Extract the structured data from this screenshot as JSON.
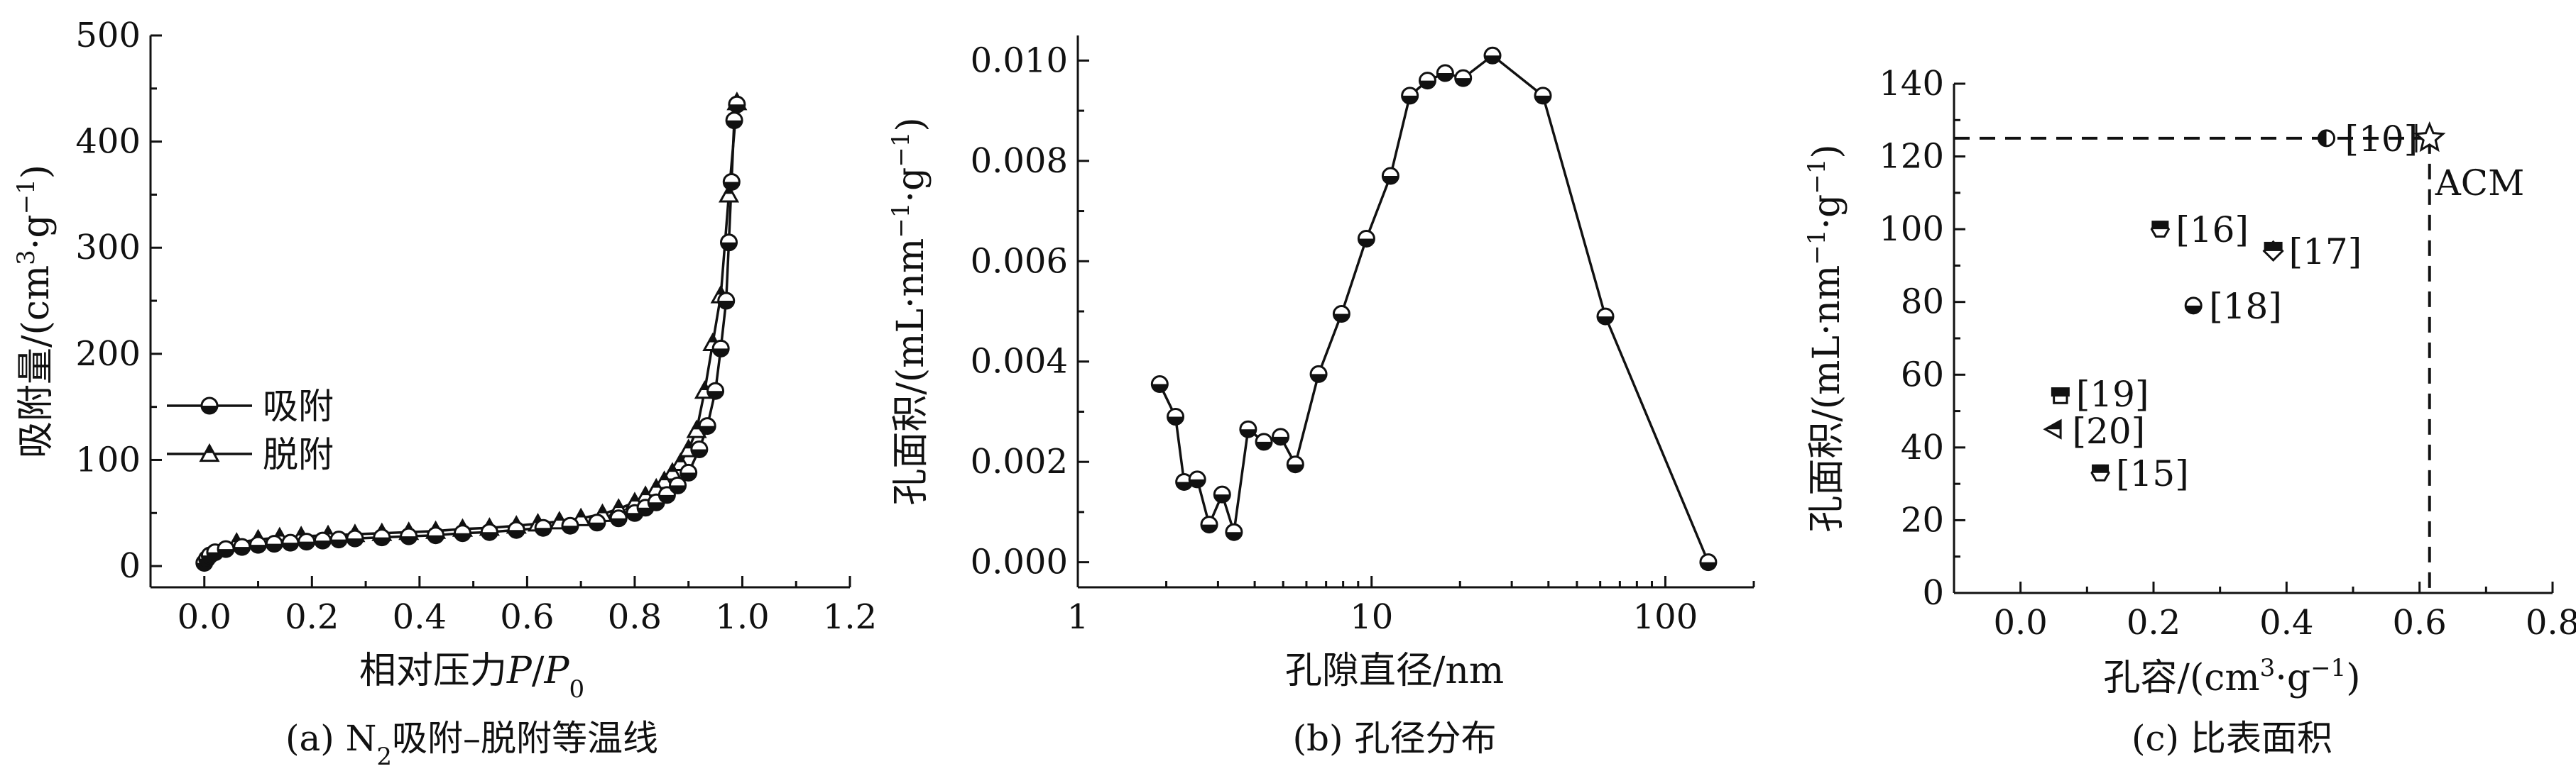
{
  "chart_data": [
    {
      "type": "line",
      "caption": "(a) N₂吸附–脱附等温线",
      "xlabel": "相对压力P/P₀",
      "ylabel": "吸附量/(cm³·g⁻¹)",
      "xlim": [
        -0.1,
        1.2
      ],
      "ylim": [
        -20,
        500
      ],
      "xticks": [
        0.0,
        0.2,
        0.4,
        0.6,
        0.8,
        1.0,
        1.2
      ],
      "yticks": [
        0,
        100,
        200,
        300,
        400,
        500
      ],
      "legend_position": "middle-left",
      "series": [
        {
          "name": "吸附",
          "marker": "half-circle",
          "x": [
            0.0,
            0.005,
            0.01,
            0.02,
            0.04,
            0.07,
            0.1,
            0.13,
            0.16,
            0.19,
            0.22,
            0.25,
            0.28,
            0.33,
            0.38,
            0.43,
            0.48,
            0.53,
            0.58,
            0.63,
            0.68,
            0.73,
            0.77,
            0.8,
            0.82,
            0.84,
            0.86,
            0.88,
            0.9,
            0.92,
            0.935,
            0.95,
            0.96,
            0.97,
            0.975,
            0.98,
            0.985,
            0.99
          ],
          "y": [
            3,
            7,
            10,
            13,
            16,
            18,
            20,
            21,
            22,
            23,
            24,
            25,
            26,
            27,
            28,
            29,
            31,
            32,
            34,
            36,
            38,
            41,
            45,
            50,
            55,
            60,
            67,
            76,
            88,
            110,
            132,
            165,
            205,
            250,
            305,
            362,
            420,
            435
          ]
        },
        {
          "name": "脱附",
          "marker": "half-triangle",
          "x": [
            0.99,
            0.975,
            0.96,
            0.945,
            0.93,
            0.915,
            0.9,
            0.885,
            0.87,
            0.855,
            0.84,
            0.82,
            0.8,
            0.77,
            0.74,
            0.7,
            0.66,
            0.62,
            0.58,
            0.53,
            0.48,
            0.43,
            0.38,
            0.33,
            0.28,
            0.23,
            0.18,
            0.14,
            0.1,
            0.06
          ],
          "y": [
            437,
            350,
            255,
            210,
            165,
            128,
            110,
            97,
            88,
            80,
            73,
            66,
            60,
            54,
            49,
            45,
            42,
            40,
            38,
            36,
            35,
            33,
            32,
            31,
            30,
            29,
            28,
            27,
            25,
            22
          ]
        }
      ]
    },
    {
      "type": "line",
      "caption": "(b) 孔径分布",
      "xlabel": "孔隙直径/nm",
      "ylabel": "孔面积/(mL·nm⁻¹·g⁻¹)",
      "xscale": "log",
      "xlim": [
        1,
        200
      ],
      "ylim": [
        -0.0005,
        0.0105
      ],
      "xticks": [
        1,
        10,
        100
      ],
      "yticks": [
        "0.000",
        "0.002",
        "0.004",
        "0.006",
        "0.008",
        "0.010"
      ],
      "series": [
        {
          "marker": "half-circle",
          "x": [
            1.9,
            2.15,
            2.3,
            2.55,
            2.8,
            3.1,
            3.4,
            3.8,
            4.3,
            4.9,
            5.5,
            6.6,
            7.9,
            9.6,
            11.6,
            13.5,
            15.5,
            17.8,
            20.5,
            25.8,
            38.3,
            62.5,
            140
          ],
          "y": [
            0.00355,
            0.0029,
            0.0016,
            0.00165,
            0.00075,
            0.00135,
            0.0006,
            0.00265,
            0.0024,
            0.0025,
            0.00195,
            0.00375,
            0.00495,
            0.00645,
            0.0077,
            0.0093,
            0.0096,
            0.00975,
            0.00965,
            0.0101,
            0.0093,
            0.0049,
            0.0
          ]
        }
      ]
    },
    {
      "type": "scatter",
      "caption": "(c) 比表面积",
      "xlabel": "孔容/(cm³·g⁻¹)",
      "ylabel": "孔面积/(mL·nm⁻¹·g⁻¹)",
      "xlim": [
        -0.1,
        0.8
      ],
      "ylim": [
        0,
        140
      ],
      "xticks": [
        "0.0",
        "0.2",
        "0.4",
        "0.6",
        "0.8"
      ],
      "yticks": [
        0,
        20,
        40,
        60,
        80,
        100,
        120,
        140
      ],
      "points": [
        {
          "label": "[10]",
          "x": 0.46,
          "y": 125,
          "marker": "half-circle-left"
        },
        {
          "label": "[16]",
          "x": 0.21,
          "y": 100,
          "marker": "half-hexagon"
        },
        {
          "label": "[17]",
          "x": 0.38,
          "y": 94,
          "marker": "half-diamond"
        },
        {
          "label": "[18]",
          "x": 0.26,
          "y": 79,
          "marker": "half-circle"
        },
        {
          "label": "[19]",
          "x": 0.06,
          "y": 54,
          "marker": "half-square"
        },
        {
          "label": "[20]",
          "x": 0.05,
          "y": 45,
          "marker": "half-triangle-left"
        },
        {
          "label": "[15]",
          "x": 0.12,
          "y": 33,
          "marker": "half-hexagon"
        },
        {
          "label": "ACM",
          "x": 0.615,
          "y": 125,
          "marker": "star"
        }
      ],
      "reference_lines": {
        "x": 0.615,
        "y": 125,
        "style": "dashed"
      }
    }
  ]
}
